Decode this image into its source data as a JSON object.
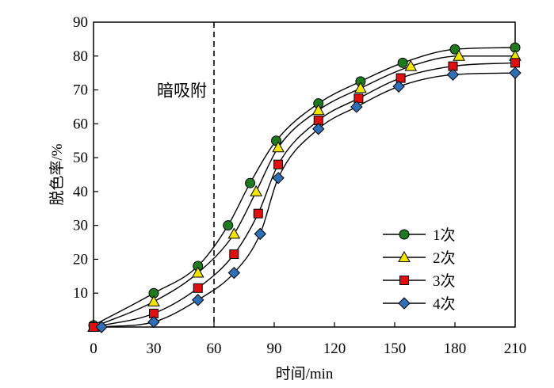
{
  "chart_data": {
    "type": "line",
    "xlabel": "时间/min",
    "ylabel": "脱色率/%",
    "xlim": [
      0,
      210
    ],
    "ylim": [
      0,
      90
    ],
    "xticks": [
      0,
      30,
      60,
      90,
      120,
      150,
      180,
      210
    ],
    "xtick_labels": [
      "0",
      "30",
      "60",
      "90",
      "120",
      "150",
      "180",
      "210"
    ],
    "yticks": [
      10,
      20,
      30,
      40,
      50,
      60,
      70,
      80,
      90
    ],
    "ytick_labels": [
      "10",
      "20",
      "30",
      "40",
      "50",
      "60",
      "70",
      "80",
      "90"
    ],
    "grid": false,
    "legend_position": "bottom-right",
    "annotations": [
      {
        "text": "暗吸附",
        "x": 44,
        "y": 70,
        "kind": "text"
      },
      {
        "x": 60,
        "kind": "vline",
        "style": "dashed"
      }
    ],
    "series": [
      {
        "name": "1次",
        "marker": "circle",
        "color": "#1f7a1f",
        "x": [
          0,
          30,
          52,
          67,
          78,
          91,
          112,
          133,
          154,
          180,
          210
        ],
        "y": [
          0.5,
          10,
          18,
          30,
          42.5,
          55,
          66,
          72.5,
          78,
          82,
          82.5
        ]
      },
      {
        "name": "2次",
        "marker": "triangle",
        "color": "#f2e600",
        "x": [
          0,
          30,
          52,
          70,
          81,
          92,
          112,
          133,
          158,
          182,
          210
        ],
        "y": [
          0,
          7.5,
          16,
          27.5,
          40,
          53,
          64,
          70.5,
          77,
          80,
          80
        ]
      },
      {
        "name": "3次",
        "marker": "square",
        "color": "#e01010",
        "x": [
          0,
          30,
          52,
          70,
          82,
          92,
          112,
          132,
          153,
          179,
          210
        ],
        "y": [
          0,
          4,
          11.5,
          21.5,
          33.5,
          48,
          61,
          67.5,
          73.5,
          77,
          78
        ]
      },
      {
        "name": "4次",
        "marker": "diamond",
        "color": "#2f6fb5",
        "x": [
          4,
          30,
          52,
          70,
          83,
          92,
          112,
          131,
          152,
          179,
          210
        ],
        "y": [
          0,
          1.5,
          8,
          16,
          27.5,
          44,
          58.5,
          65,
          71,
          74.5,
          75
        ]
      }
    ]
  }
}
